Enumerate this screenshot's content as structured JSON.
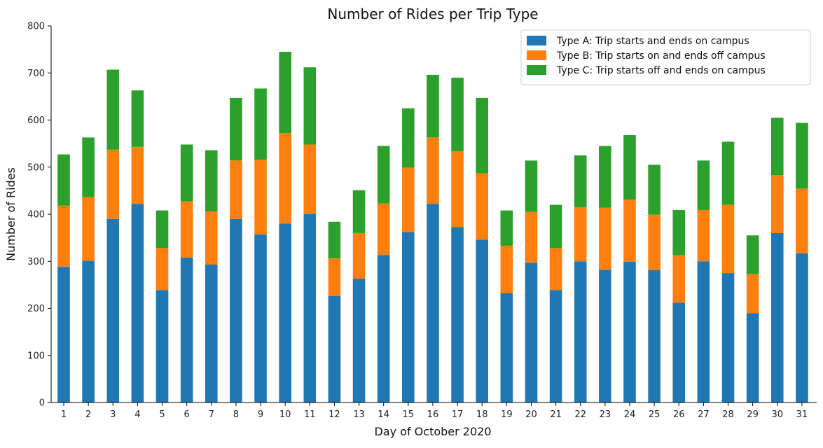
{
  "chart_data": {
    "type": "bar",
    "stacked": true,
    "title": "Number of Rides per Trip Type",
    "xlabel": "Day of October 2020",
    "ylabel": "Number of Rides",
    "ylim": [
      0,
      800
    ],
    "yticks": [
      0,
      100,
      200,
      300,
      400,
      500,
      600,
      700,
      800
    ],
    "grid": false,
    "legend_position": "top-right",
    "categories": [
      "1",
      "2",
      "3",
      "4",
      "5",
      "6",
      "7",
      "8",
      "9",
      "10",
      "11",
      "12",
      "13",
      "14",
      "15",
      "16",
      "17",
      "18",
      "19",
      "20",
      "21",
      "22",
      "23",
      "24",
      "25",
      "26",
      "27",
      "28",
      "29",
      "30",
      "31"
    ],
    "series": [
      {
        "name": "Type A: Trip starts and ends on campus",
        "color": "#1f77b4",
        "values": [
          288,
          301,
          390,
          422,
          239,
          308,
          293,
          390,
          357,
          380,
          400,
          226,
          263,
          313,
          362,
          422,
          373,
          346,
          232,
          297,
          239,
          300,
          282,
          299,
          281,
          212,
          300,
          275,
          190,
          360,
          317
        ]
      },
      {
        "name": "Type B: Trip starts on and ends off campus",
        "color": "#ff7f0e",
        "values": [
          130,
          135,
          147,
          121,
          89,
          119,
          113,
          124,
          159,
          192,
          148,
          80,
          97,
          110,
          137,
          141,
          161,
          141,
          101,
          108,
          89,
          115,
          132,
          132,
          118,
          101,
          109,
          145,
          83,
          123,
          137
        ]
      },
      {
        "name": "Type C: Trip starts off and ends on campus",
        "color": "#2ca02c",
        "values": [
          109,
          127,
          170,
          120,
          80,
          121,
          130,
          133,
          151,
          173,
          164,
          78,
          91,
          122,
          126,
          133,
          156,
          160,
          75,
          109,
          92,
          110,
          131,
          137,
          106,
          96,
          105,
          134,
          82,
          122,
          140
        ]
      }
    ]
  }
}
